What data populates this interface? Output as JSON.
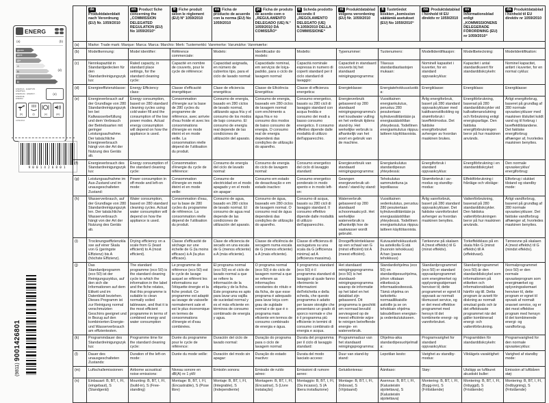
{
  "energy_label": {
    "title": "ENERG",
    "marker_supplier": "(a)",
    "marker_model": "(b)",
    "marker_class": "(d)",
    "marker_annual_energy": "(e)",
    "energy_words_line1": "ENERGIA · ЕНЕРГИЯ · ΕΝΕΡΓΕΙΑ",
    "energy_words_line2": "ENERGIJA · ENERGY · ENERGIE",
    "energy_words_line3": "ENERGI",
    "footer_text": "1059/2010",
    "classes": [
      "A+++",
      "A++",
      "A+",
      "A",
      "B",
      "C",
      "D"
    ],
    "bar_widths_pct": [
      38,
      46,
      54,
      62,
      70,
      78,
      88
    ],
    "bar_colors": [
      "#6f6f6f",
      "#7e7e7e",
      "#989898",
      "#e6e6e6",
      "#cdcdcd",
      "#a6a6a6",
      "#686868"
    ],
    "bar_text_colors": [
      "#ffffff",
      "#ffffff",
      "#ffffff",
      "#888888",
      "#666666",
      "#ffffff",
      "#ffffff"
    ],
    "icons": [
      {
        "name": "water-tap-icon",
        "marker": "(h)"
      },
      {
        "name": "drying-class-icon",
        "marker": "(i)"
      },
      {
        "name": "place-settings-icon",
        "marker": "(c)"
      },
      {
        "name": "noise-icon",
        "marker": "(m)"
      }
    ]
  },
  "barcode": {
    "digits": "9001426801"
  },
  "side_id": {
    "doc_number": "9001426801",
    "doc_code": "(9811)"
  },
  "table": {
    "languages": [
      {
        "code": "de",
        "title": "Produktdatenblatt nach Verordnung (EU) Nr. 1059/2010"
      },
      {
        "code": "en",
        "title": "Product fiche concerning the „COMMISSION DELEGATED REGULATION (EU) No 1059/2010“"
      },
      {
        "code": "fr",
        "title": "Fiche produit selon le règlement (EU) N° 1059/2010"
      },
      {
        "code": "es",
        "title": "Ficha de producto de acuerdo con la norma (EU) No 1059/2010"
      },
      {
        "code": "pt",
        "title": "Ficha de produto de acordo com o „REGULAMENTO DELEGADO (UE) N.° 1059/2010 DA COMISSÃO“"
      },
      {
        "code": "it",
        "title": "Scheda prodotto secondo il „REGOLAMENTO DELEGATO (UE) N.1059/2010 DELLA COMMISSIONE“"
      },
      {
        "code": "nl",
        "title": "Produktdatablad volgens verordening (EU) Nr. 1059/2010"
      },
      {
        "code": "fi",
        "title": "Tuotetiedot koskien „komission säätämiä asetukset (EU) No 1059/2010“"
      },
      {
        "code": "no",
        "title": "Produktdatablad i henhold til EU direktiv nr 1059/2010"
      },
      {
        "code": "sv",
        "title": "Informationsblad enligt „KOMMISSIONENS DELEGERADE FÖRORDNING (EU) nr 1059/2010“"
      },
      {
        "code": "da",
        "title": "Produktdatablad i henhold til EU direktiv nr 1059/2010"
      }
    ],
    "rows": [
      {
        "id": "(a)",
        "span_text": "Marke: Trade mark: Marque: Marca: Marca: Marchio: Merk: Tuotemerkki: Varemerke: Varumärke: Varemærke:"
      },
      {
        "id": "(b)",
        "cells": [
          "Modellkennung:",
          "Model identifier:",
          "Référence commerciale:",
          "Modelo:",
          "Identificador do modelo:",
          "Modello:",
          "Typenummer:",
          "Tuotenumero:",
          "Modellidentifikasjon:",
          "Modellbeteckning:",
          "Modelidentifikation:"
        ]
      },
      {
        "id": "(c)",
        "cells": [
          "Nennkapazität in Standardgedecken für den Standardreinigungszyklus:",
          "Rated capacity, in standard place settings, for the standard cleaning cycle:",
          "Capacité en nombre de couverts, pour le cycle de référence:",
          "Capacidad asignada, en número de cubiertos tipo, para el ciclo de lavado normal:",
          "Capacidade nominal, em serviços de loiça-padrão, para o ciclo de lavagem normal:",
          "Capacità nominale espressa in numero di coperti standard per il ciclo standard di lavaggio:",
          "Capaciteit in standaard couverts bij het standaard reinigingsprogramma:",
          "Tilavuus standardiastiastojen mukaan:",
          "Nominell kapasitet i kuverter, for en standard oppvaskcyklus:",
          "Kapacitet i antal standardkuvert för standarddiskcykeln:",
          "Nominel kapacitet, anført i kuverter, for en normal cyklus:"
        ]
      },
      {
        "id": "(d)",
        "cells": [
          "Energieeffizienzklasse:",
          "Energy Efficiency class:",
          "Classe d'efficacité énergétique:",
          "Clase de eficiencia energética:",
          "Classe de Eficiência Energética:",
          "Classe di efficienza energetica:",
          "Energieklasse:",
          "Energiatehokkuusluokka:",
          "Energiklasse:",
          "Energiklass:",
          "Energiklasse:"
        ]
      },
      {
        "id": "(e)",
        "cells": [
          "Energieverbrauch auf der Grundlage von 280 Standardreinigungszyklen bei Kaltwasserbefüllung und dem Verbrauch der Betriebsarten mit geringer Leistungsaufnahme. Der tatsächliche Energieverbrauch hängt von der Art der Nutzung des Geräts ab.",
          "Energy consumption, based on 280 standard cleaning cycles using cold water fill and the consumption of the low power modes. Actual energy consumption will depend on how the appliance is used.",
          "Consommation d'énergie sur la base de 280 cycles du programme de référence, avec arrivée d'eau froide et avec les consommations d'énergie en mode éteint et en mode veille. La consommation réelle dépend de l'utilisation du produit.",
          "Consumo de energía, basado en 280 ciclos de lavado normal, utilizando agua fría y el consumo de los modos de bajo consumo. El consumo de energía real depende de las condiciones de utilización del aparato.",
          "Consumo de energia, baseado em 280 ciclos de lavagem normal com enchimento a água fria e no consumo dos modos de baixo consumo de energia. O consumo real de energia dependerá das condições de utilização do aparelho.",
          "Consumo energetico, basato su 280 cicli di lavaggio standard con acqua fredda e consumo dei modi a basso consumo energetico. Il consumo effettivo dipende dalle modalità di utilizzo dell'apparecchio.",
          "Energieverbruik gebaseerd op 280 standaard reinigingsprogramma's met koudwater vulling en het verbruik tijdens stand-by. Het werkelijke verbruik is afhankelijk van het soort en gebruik van de machine.",
          "Vuosittainen energiankulutus, perustuu 280 pesukertaan kylmävesiliitäntään ja energiasäästötilan yhteydessä. Todellinen energiankulutus riippuu laitteen käyttötavoista.",
          "Årlig energiforbruk, basert på 280 standard oppvaskcykluser med kaldtvannstilkobling og strømforbruk i laveffektmodus. Det faktiske energiforbruket avhenger av hvordan maskinen brukes.",
          "Energiförbrukning, baserad på 280 standarddiskcykler vid kallvattenanslutning och förbrukning enligt energisparläge. Den faktiska energiförbrukningen beror på hur maskinen används.",
          "Årligt energiforbrug, baseret på grundlag af 280 normale opvaskecykluser med maskinen tilsluttet koldt vand og til forbrug i laveffekttilstandene. Det faktiske energiforbrug afhænger af, hvorledes maskinen benyttes."
        ]
      },
      {
        "id": "(f)",
        "cells": [
          "Energieverbrauch des Standardreinigungszyklus:",
          "Energy consumption of the standard cleaning cycle:",
          "Consommation d'énergie du cycle de référence:",
          "Consumo de energía del ciclo de lavado normal:",
          "Consumo de energia do ciclo de lavagem normal:",
          "Consumo energetico del ciclo di lavaggio standard:",
          "Energieverbruik van standaard reinigingsprogramma:",
          "Energiankulutus standardipesun yhteydessä:",
          "Energiforbruk i standard oppvaskcyklus:",
          "Energiförbrukning i en standarddiskcykel:",
          "Den normale opvaskecyklus' energiforbrug:"
        ]
      },
      {
        "id": "(g)",
        "cells": [
          "Leistungsaufnahme im Aus-Zustand und im unausgeschalteten Zustand:",
          "Power consumption in off-mode and left-on mode:",
          "Consommation d'énergie en mode éteint et en mode veille:",
          "Consumo de electricidad en el modo apagado y en el modo sin apagar:",
          "Consumo em estado de desactivação e em estado inactivo:",
          "Consumo energetico ponderato in modo spento e in modo left-on:",
          "Gewogen energieverbruik uit-stand / stand-by stand:",
          "Tehokulutus sammutettuna ja lepotilassa:",
          "Strømforbruk i av-modus og standby-modus:",
          "Effektförbrukning i frånläge och viloläge:",
          "Elforbrug i slukket tilstand og standby mode:"
        ]
      },
      {
        "id": "(h)",
        "cells": [
          "Wasserverbrauch, auf der Grundlage von 280 Standardreinigungszyklen. Der tatsächliche Wasserverbrauch hängt von der Art der Nutzung des Geräts ab.",
          "Water consumption, based on 280 standard cleaning cycles. Actual water consumption will depend on how the appliance is used.",
          "Consommation d'eau, sur la base de 280 cycles du programme de référence. La consommation réelle dépend de l'utilisation du produit.",
          "Consumo de agua, basado en 280 ciclos de lavado normal. El consumo de agua real depende de las condiciones de utilización del aparato.",
          "Consumo de água, baseado em 280 ciclos de lavagem normal. O consumo real de água dependerá das condições de utilização do aparelho.",
          "Consumo di acqua, basato su 280 cicli di lavaggio standard. Il consumo effettivo dipende dalle modalità di utilizzo dell'apparecchio.",
          "Waterverbruik gebaseerd op 280 standaard schoonmaakcycli. Het werkelijke waterverbruik is afhankelijk hoe de vaatwasser wordt gebruikt.",
          "Vuosittainen vedenkulutus, perustuu 280 pesukertaan kylmävesiliitäntään ja energiasäästötilan yhteydessä. Todellinen energiankulutus riippuu laitteen käyttötavoista.",
          "Årlig vannforbruk, basert på 280 standard oppvaskcykluser. Det faktiske vannforbruket avhenger av hvordan maskinen benyttes.",
          "Vattenförbrukning, baserad på 280 standarddiskcykler. Den faktiska vattenförbrukningen beror på hur maskinen används.",
          "Årligt vandforbrug, baseret på grundlag af 280 normale opvaskecykluser. Det faktiske vandforbrug afhænger af, hvorledes maskinen benyttes."
        ]
      },
      {
        "id": "(i)",
        "cells": [
          "Trocknungseffizienzklasse auf einer Skala von G (geringste Effizienz) bis A (höchste Effizienz).",
          "Drying efficiency on a scale from G (least efficient) to A (most efficient).",
          "Classe d'efficacité de séchage sur une échelle de G (la moins efficace) à A (la plus efficace).",
          "Clase de eficiencia de secado en una escala de G (menos eficiente) a A (más eficiente).",
          "Classe de eficiência de secagem numa escala de G (menos eficiente) a A (mais eficiente).",
          "Classe di efficienza di asciugatura su una scala da G (efficienza minima) ad A (efficienza massima).",
          "Droogefficiëntieklasse op een schaal van G (minst efficiënt) tot A (meest efficiënt).",
          "Kuivaustehokkuusluokka asteikolla G:stä (huonoin tehokkuus) A:han (paras tehokkuus)",
          "Tørkeevne på skalaen A (mest effektiv) til G (minst effektiv).",
          "Torkeffektklass på en skala från G (minst effektiv) till A (effektivast).",
          "Tørreevne på skalaen A (mest effektiv) til G (mindst effektiv)."
        ]
      },
      {
        "id": "(j)",
        "cells": [
          "Das Standardprogramm (eco 50) ist der Reinigungszyklus, auf den sich die Informationen auf dem Etikett und im Datenblatt beziehen. Dieses Programm ist zur Reinigung normal verschmutzten Geschirrs geeignet und in Bezug auf den kombinierten Energie- und Wasserverbrauch am effizientesten.",
          "The standard programme (eco 50) is the standard cleaning cycle to which the information in the label and the fiche relates, that this programme is suitable to clean normally soiled tableware, and that it is the most efficient programme in terms of combined energy and water consumption",
          "Le programme de référence (eco 50) est le cycle de lavage auquel se réfèrent les informations sur l'étiquette énergie et la fiche produit. Ce programme est adapté au lavage de vaisselle normalement sale et est le plus économique en termes de consommations d'énergie et d'eau combinées.",
          "El programa normal (eco 50) es el ciclo de lavado normal a que se refiere la información de la etiqueta y de la ficha. Este programa es apto para lavar una vajilla de suciedad normal y es el más eficiente en términos de consumo combinado de energía y agua.",
          "O programa normal (eco 50) é do ciclo de lavagem normal a que se referem as informações constantes do rótulo e da ficha, de que esse programa é adequado para lavar loiça com grau de sujidade normal e de que é o programa mais eficiente em termos de consumo combinado de energia e água.",
          "Il programma standard (eco 50) è il programma standard di lavaggio al quale fanno riferimento le informazioni dell'etichetta e della scheda, che questo programma è adatto per lavare stoviglie che presentano un grado di sporco normale e che è il programma più efficiente in termini di consumo combinato di energia e acqua.",
          "Het standaard reinigingsprogramma (eco 50) is het standaard-reinigingsprogramma waarop de informatie op het label en het datablad zijn gebaseerd. Dit programma is geschikt om normaal bevuild serviesgoed op de meest efficiënte wijze te reinigen betreffende energie- en waterverbruik.",
          "Standardiohjelma (eco 50) on standardipesuohjelma, johon viitataan etiketissä ja informaatiositeessä. Tämä ohjelma on tarkoitettu normaalilikaisille astioille ja se on tehokkain ohjelma taloudellisen energian- ja vedenkulutukseen.",
          "Standardprogrammet (eco 50) er standard oppvaskprogrammet som energimerket og opplysningsskjemaet henviser til; dette programmet er egnet til oppvask av normalt tilsmusset service, og er det mest effektive programmet med hensyn til det kombinerte energi- og vannforbruket.",
          "Standardprogrammet (eco 50) är den standarddiskcykel som informationen på etiketten och informationsbladet hänför sig till. Detta program är avsett för diskning av normalt smutsat gods och är det effektivaste programmet när det gäller kombinerad energi- och vattenförbrukning.",
          "Normalprogrammet (eco 50) er den normale opvaskeprogram som energimærket og oplysningsskemaet henviser til, dette program er egnet til opvask af normalt snavset service, og er det mest effektive program med hensyn til det kombinerede energi- og vandforbrug."
        ]
      },
      {
        "id": "(k)",
        "cells": [
          "Programmdauer des Standardreinigungszyklus:",
          "Programme time for the standard cleaning cycle:",
          "Durée du programme pour le cycle de référence:",
          "Duración del ciclo de lavado normal:",
          "Duração do programa para o ciclo de lavagem normal:",
          "Durata del programma per il ciclo di lavaggio standard:",
          "Programmaduur van het standaard reinigingsprogramma:",
          "Ohjelma-aika standardipesuohjelmalla:",
          "Programvarighet for standard oppvaskcyklus:",
          "Programtiden för standarddiskcykeln:",
          "Programvarighed for den normale opvaskecyklus:"
        ]
      },
      {
        "id": "(l)",
        "cells": [
          "Dauer des unausgeschalteten Zustands:",
          "Duration of the left-on mode:",
          "Durée du mode veille:",
          "Duración del modo sin apagar:",
          "Duração do estado inactivo:",
          "Durata del modo lasciato acceso:",
          "Duur van stand-by stand:",
          "Lepotilan kesto:",
          "Varighet av standby-modus:",
          "Vilolägets varaktighet:",
          "Varighed af standby mode:"
        ]
      },
      {
        "id": "(m)",
        "cells": [
          "Luftschallemissionen:",
          "Airborne acoustical noise emissions:",
          "Niveau sonore en dB(A) re 1 pW:",
          "Emisión sonora:",
          "Emissão de ruído aéreo:",
          "Emissioni di rumore aereo:",
          "Geluidsniveau:",
          "Äänitaso:",
          "Støy:",
          "Utsläpp av luftburet akustiskt buller:",
          "Emission af luftbåren støj:"
        ]
      },
      {
        "id": "(n)",
        "cells": [
          "Einbauart: B, BT, I, FI, (eingebaut), S (Standgerät)",
          "Mounting: B, BT, I, FI, (build-in), S (Free-standing)",
          "Montage: B, BT, I, FI, (Encastrable), S (Pose libre)",
          "Montaje: B, BT, I, FI, (Integrable), S (Independiente)",
          "Montagem: B, BT, I, FI, (Encastrar), S (Livre instalação)",
          "Montaggio: B, BT, I, FI, (Da incasso), S (A libera installazione)",
          "Montage: B, BT, I, FI, (Inbouw), S (Vrijstaand)",
          "Asennus: B, BT, I, FI, (Kalusteisiin sijoitettava), S (Kalusteisiin sijoitettava)",
          "Montering: B, BT, I, FI, (Bygg-inn), S (Frittstående)",
          "Montering: B, BT, I, FI, (Inbyggd), S (Fristående)",
          "Montering: B, BT, I, FI, (Indbygning), S (Fritstående)"
        ]
      }
    ]
  }
}
